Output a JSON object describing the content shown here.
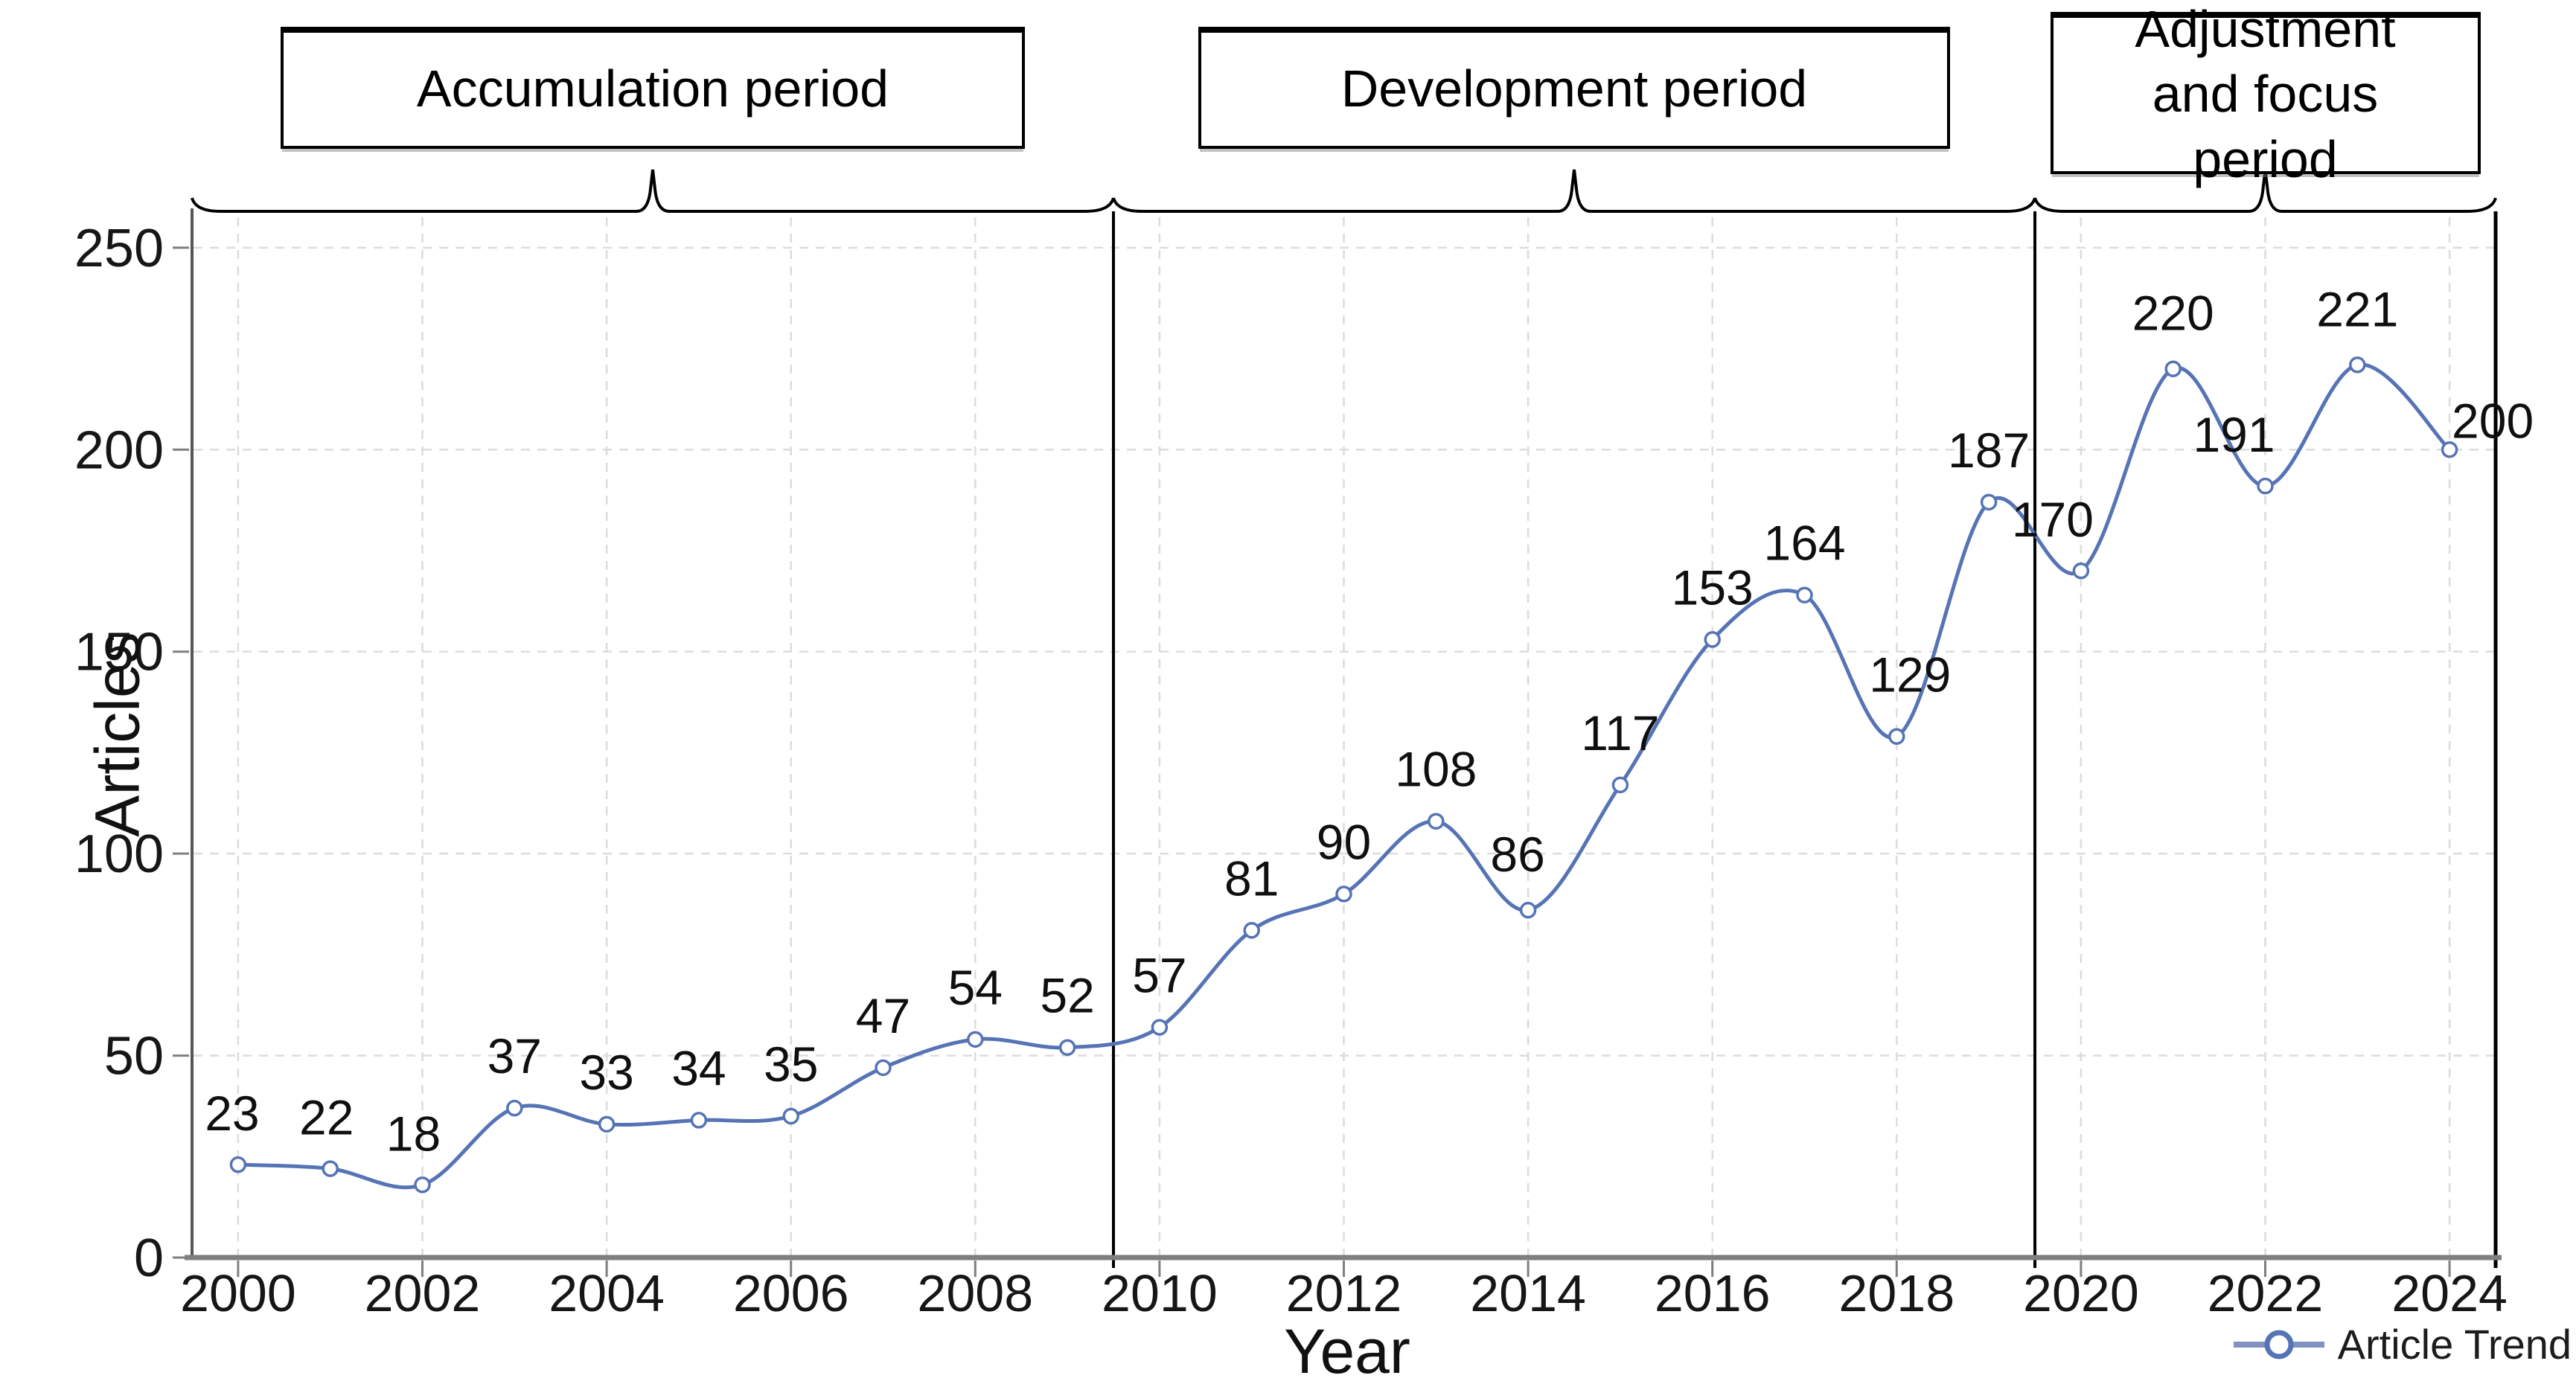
{
  "chart_data": {
    "type": "line",
    "xlabel": "Year",
    "ylabel": "Articles",
    "x": [
      2000,
      2001,
      2002,
      2003,
      2004,
      2005,
      2006,
      2007,
      2008,
      2009,
      2010,
      2011,
      2012,
      2013,
      2014,
      2015,
      2016,
      2017,
      2018,
      2019,
      2020,
      2021,
      2022,
      2023,
      2024
    ],
    "series": [
      {
        "name": "Article Trend",
        "values": [
          23,
          22,
          18,
          37,
          33,
          34,
          35,
          47,
          54,
          52,
          57,
          81,
          90,
          108,
          86,
          117,
          153,
          164,
          129,
          187,
          170,
          220,
          191,
          221,
          200
        ]
      }
    ],
    "xticks": [
      2000,
      2002,
      2004,
      2006,
      2008,
      2010,
      2012,
      2014,
      2016,
      2018,
      2020,
      2022,
      2024
    ],
    "yticks": [
      0,
      50,
      100,
      150,
      200,
      250
    ],
    "xlim": [
      1999.5,
      2024.5
    ],
    "ylim": [
      0,
      259
    ],
    "grid": true,
    "legend_position": "bottom-right",
    "line_color": "#5674b5",
    "marker": "open-circle",
    "periods": [
      {
        "label": "Accumulation period",
        "start": 1999.5,
        "end": 2009.5
      },
      {
        "label": "Development period",
        "start": 2009.5,
        "end": 2019.5
      },
      {
        "label": "Adjustment and focus period",
        "start": 2019.5,
        "end": 2024.5
      }
    ]
  }
}
